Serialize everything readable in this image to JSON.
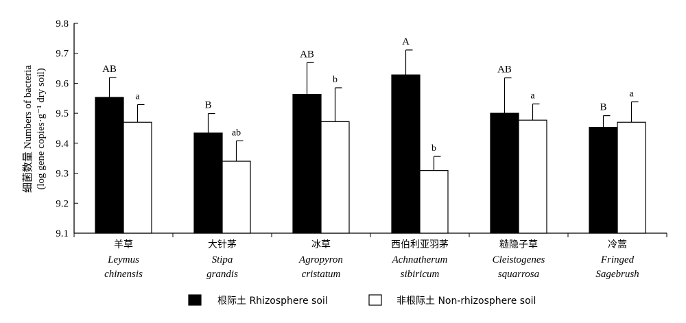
{
  "chart_data": {
    "type": "bar",
    "ylabel": "细菌数量 Numbers of bacteria",
    "ylabel2": "(log gene copies·g⁻¹ dry soil)",
    "ylim": [
      9.1,
      9.8
    ],
    "yticks": [
      "9.1",
      "9.2",
      "9.3",
      "9.4",
      "9.5",
      "9.6",
      "9.7",
      "9.8"
    ],
    "categories": [
      {
        "cn": "羊草",
        "en1": "Leymus",
        "en2": "chinensis"
      },
      {
        "cn": "大针茅",
        "en1": "Stipa",
        "en2": "grandis"
      },
      {
        "cn": "冰草",
        "en1": "Agropyron",
        "en2": "cristatum"
      },
      {
        "cn": "西伯利亚羽茅",
        "en1": "Achnatherum",
        "en2": "sibiricum"
      },
      {
        "cn": "糙隐子草",
        "en1": "Cleistogenes",
        "en2": "squarrosa"
      },
      {
        "cn": "冷蒿",
        "en1": "Fringed",
        "en2": "Sagebrush"
      }
    ],
    "series": [
      {
        "name": "根际土  Rhizosphere soil",
        "fill": "#000000",
        "values": [
          9.553,
          9.434,
          9.563,
          9.628,
          9.5,
          9.453
        ],
        "errors": [
          0.066,
          0.065,
          0.106,
          0.083,
          0.118,
          0.039
        ],
        "labels": [
          "AB",
          "B",
          "AB",
          "A",
          "AB",
          "B"
        ]
      },
      {
        "name": "非根际土  Non-rhizosphere soil",
        "fill": "#ffffff",
        "values": [
          9.47,
          9.34,
          9.472,
          9.309,
          9.477,
          9.47
        ],
        "errors": [
          0.059,
          0.068,
          0.113,
          0.047,
          0.054,
          0.068
        ],
        "labels": [
          "a",
          "ab",
          "b",
          "b",
          "a",
          "a"
        ]
      }
    ],
    "legend": "bottom"
  }
}
